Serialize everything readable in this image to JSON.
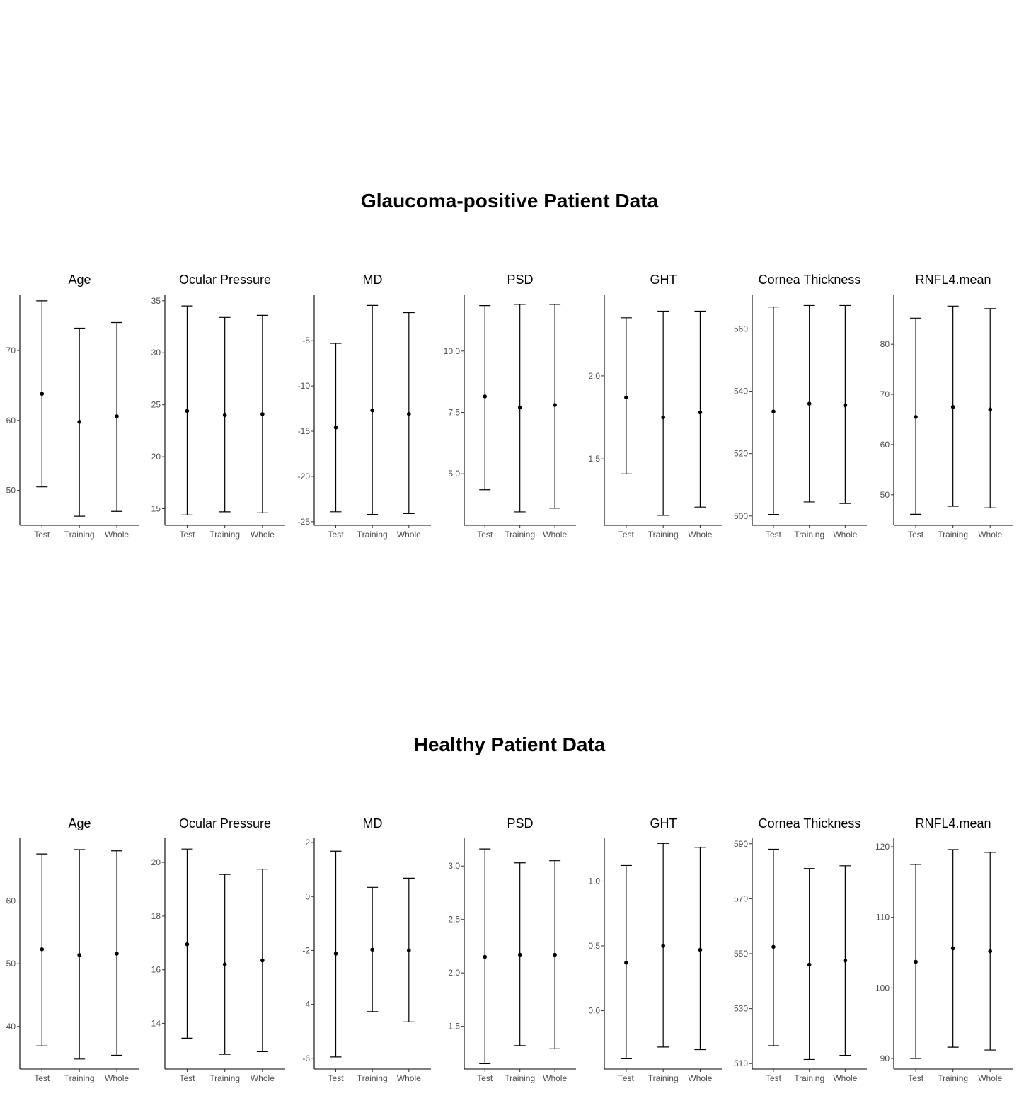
{
  "chart_data": [
    {
      "type": "errorbar",
      "title": "Glaucoma-positive Patient Data",
      "categories": [
        "Test",
        "Training",
        "Whole"
      ],
      "panels": [
        {
          "title": "Age",
          "ylim": [
            45,
            78
          ],
          "ticks": [
            50,
            60,
            70
          ],
          "mean": [
            63.8,
            59.8,
            60.6
          ],
          "lower": [
            50.5,
            46.3,
            47.0
          ],
          "upper": [
            77.1,
            73.2,
            74.0
          ]
        },
        {
          "title": "Ocular Pressure",
          "ylim": [
            13.4,
            35.6
          ],
          "ticks": [
            15,
            20,
            25,
            30,
            35
          ],
          "mean": [
            24.4,
            24.0,
            24.1
          ],
          "lower": [
            14.4,
            14.7,
            14.6
          ],
          "upper": [
            34.5,
            33.4,
            33.6
          ]
        },
        {
          "title": "MD",
          "ylim": [
            -25.4,
            0.1
          ],
          "ticks": [
            -25,
            -20,
            -15,
            -10,
            -5
          ],
          "mean": [
            -14.6,
            -12.7,
            -13.1
          ],
          "lower": [
            -23.9,
            -24.2,
            -24.1
          ],
          "upper": [
            -5.3,
            -1.1,
            -1.9
          ]
        },
        {
          "title": "PSD",
          "ylim": [
            2.9,
            12.3
          ],
          "ticks": [
            5.0,
            7.5,
            10.0
          ],
          "mean": [
            8.15,
            7.7,
            7.8
          ],
          "lower": [
            4.35,
            3.45,
            3.6
          ],
          "upper": [
            11.85,
            11.9,
            11.9
          ]
        },
        {
          "title": "GHT",
          "ylim": [
            1.1,
            2.49
          ],
          "ticks": [
            1.5,
            2.0
          ],
          "mean": [
            1.87,
            1.75,
            1.78
          ],
          "lower": [
            1.41,
            1.16,
            1.21
          ],
          "upper": [
            2.35,
            2.39,
            2.39
          ]
        },
        {
          "title": "Cornea Thickness",
          "ylim": [
            497,
            571
          ],
          "ticks": [
            500,
            520,
            540,
            560
          ],
          "mean": [
            533.5,
            536,
            535.5
          ],
          "lower": [
            500.5,
            504.5,
            504
          ],
          "upper": [
            567,
            567.5,
            567.5
          ]
        },
        {
          "title": "RNFL4.mean",
          "ylim": [
            43.9,
            89.9
          ],
          "ticks": [
            50,
            60,
            70,
            80
          ],
          "mean": [
            65.5,
            67.5,
            67.0
          ],
          "lower": [
            46.1,
            47.7,
            47.4
          ],
          "upper": [
            85.2,
            87.6,
            87.1
          ]
        }
      ]
    },
    {
      "type": "errorbar",
      "title": "Healthy Patient Data",
      "categories": [
        "Test",
        "Training",
        "Whole"
      ],
      "panels": [
        {
          "title": "Age",
          "ylim": [
            33.2,
            70.0
          ],
          "ticks": [
            40,
            50,
            60
          ],
          "mean": [
            52.3,
            51.4,
            51.6
          ],
          "lower": [
            36.9,
            34.8,
            35.4
          ],
          "upper": [
            67.5,
            68.2,
            68.0
          ]
        },
        {
          "title": "Ocular Pressure",
          "ylim": [
            12.3,
            20.9
          ],
          "ticks": [
            14,
            16,
            18,
            20
          ],
          "mean": [
            16.95,
            16.2,
            16.35
          ],
          "lower": [
            13.45,
            12.85,
            12.95
          ],
          "upper": [
            20.5,
            19.55,
            19.75
          ]
        },
        {
          "title": "MD",
          "ylim": [
            -6.4,
            2.16
          ],
          "ticks": [
            -6,
            -4,
            -2,
            0,
            2
          ],
          "mean": [
            -2.12,
            -1.97,
            -2.0
          ],
          "lower": [
            -5.95,
            -4.27,
            -4.65
          ],
          "upper": [
            1.68,
            0.34,
            0.68
          ]
        },
        {
          "title": "PSD",
          "ylim": [
            1.1,
            3.26
          ],
          "ticks": [
            1.5,
            2.0,
            2.5,
            3.0
          ],
          "mean": [
            2.15,
            2.17,
            2.17
          ],
          "lower": [
            1.15,
            1.32,
            1.29
          ],
          "upper": [
            3.16,
            3.03,
            3.05
          ]
        },
        {
          "title": "GHT",
          "ylim": [
            -0.45,
            1.33
          ],
          "ticks": [
            0.0,
            0.5,
            1.0
          ],
          "mean": [
            0.37,
            0.5,
            0.47
          ],
          "lower": [
            -0.37,
            -0.28,
            -0.3
          ],
          "upper": [
            1.12,
            1.29,
            1.26
          ]
        },
        {
          "title": "Cornea Thickness",
          "ylim": [
            508,
            592
          ],
          "ticks": [
            510,
            530,
            550,
            570,
            590
          ],
          "mean": [
            552.5,
            546,
            547.5
          ],
          "lower": [
            516.5,
            511.5,
            513
          ],
          "upper": [
            588,
            581,
            582
          ]
        },
        {
          "title": "RNFL4.mean",
          "ylim": [
            88.5,
            121.2
          ],
          "ticks": [
            90,
            100,
            110,
            120
          ],
          "mean": [
            103.7,
            105.6,
            105.2
          ],
          "lower": [
            90.0,
            91.6,
            91.2
          ],
          "upper": [
            117.5,
            119.6,
            119.2
          ]
        }
      ]
    }
  ]
}
